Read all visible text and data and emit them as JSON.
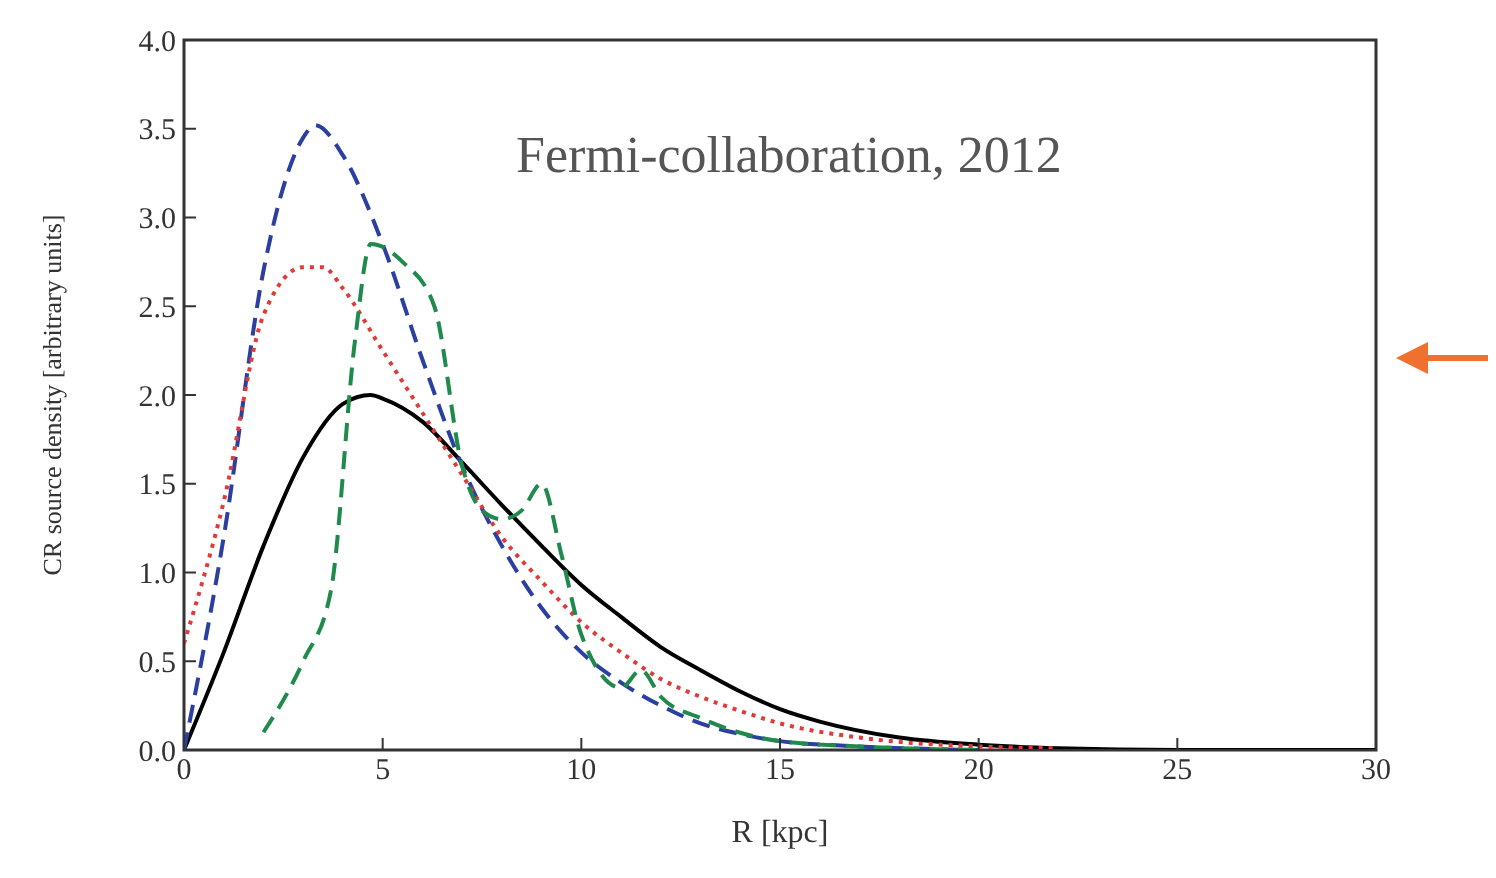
{
  "chart_data": {
    "type": "line",
    "xlabel": "R [kpc]",
    "ylabel": "CR source density [arbitrary units]",
    "xlim": [
      0,
      30
    ],
    "xticks": [
      0,
      5,
      10,
      15,
      20,
      25,
      30
    ],
    "ylim": [
      0,
      4
    ],
    "yticks": [
      {
        "value": 0,
        "label": "0.0"
      },
      {
        "value": 0.5,
        "label": "0.5"
      },
      {
        "value": 1,
        "label": "1.0"
      },
      {
        "value": 1.5,
        "label": "1.5"
      },
      {
        "value": 2,
        "label": "2.0"
      },
      {
        "value": 2.5,
        "label": "2.5"
      },
      {
        "value": 3,
        "label": "3.0"
      },
      {
        "value": 3.5,
        "label": "3.5"
      },
      {
        "value": 4,
        "label": "4.0"
      }
    ],
    "grid": false,
    "legend": false,
    "marker": "none",
    "annotations": [
      "Fermi-collaboration, 2012"
    ],
    "series": [
      {
        "color": "#000000",
        "line_style": "solid",
        "x": [
          0,
          1,
          2,
          3,
          4,
          4.7,
          5,
          6,
          7,
          8,
          9,
          10,
          11,
          12,
          13,
          14,
          15,
          16,
          18,
          20,
          22,
          25,
          30
        ],
        "values": [
          0,
          0.55,
          1.15,
          1.65,
          1.95,
          2.0,
          1.98,
          1.85,
          1.62,
          1.38,
          1.15,
          0.93,
          0.75,
          0.58,
          0.45,
          0.33,
          0.23,
          0.16,
          0.07,
          0.03,
          0.01,
          0,
          0
        ]
      },
      {
        "color": "#2a3fa0",
        "line_style": "dashed",
        "x": [
          0,
          1,
          2,
          3,
          3.3,
          4,
          5,
          6,
          7,
          8,
          9,
          10,
          11,
          12,
          13,
          14,
          15,
          17,
          20
        ],
        "values": [
          0,
          1.2,
          2.7,
          3.45,
          3.52,
          3.35,
          2.85,
          2.2,
          1.6,
          1.15,
          0.8,
          0.55,
          0.38,
          0.25,
          0.15,
          0.09,
          0.05,
          0.02,
          0
        ]
      },
      {
        "color": "#e03a3a",
        "line_style": "dotted",
        "x": [
          0,
          1,
          2,
          3,
          3.5,
          4,
          5,
          6,
          7,
          8,
          9,
          10,
          11,
          12,
          13,
          14,
          15,
          17,
          20,
          22
        ],
        "values": [
          0.6,
          1.4,
          2.45,
          2.72,
          2.72,
          2.6,
          2.25,
          1.9,
          1.55,
          1.2,
          0.95,
          0.72,
          0.55,
          0.4,
          0.3,
          0.22,
          0.15,
          0.07,
          0.02,
          0.01
        ]
      },
      {
        "color": "#1f8a4c",
        "line_style": "dashed",
        "x": [
          2,
          3,
          3.7,
          4.3,
          4.7,
          5.5,
          6.3,
          7,
          7.5,
          8,
          8.5,
          9,
          9.5,
          10,
          11,
          11.5,
          12,
          13,
          15,
          17,
          20
        ],
        "values": [
          0.1,
          0.5,
          0.9,
          2.3,
          2.85,
          2.75,
          2.5,
          1.6,
          1.35,
          1.3,
          1.35,
          1.5,
          1.1,
          0.65,
          0.35,
          0.45,
          0.3,
          0.18,
          0.05,
          0.02,
          0
        ]
      }
    ]
  }
}
